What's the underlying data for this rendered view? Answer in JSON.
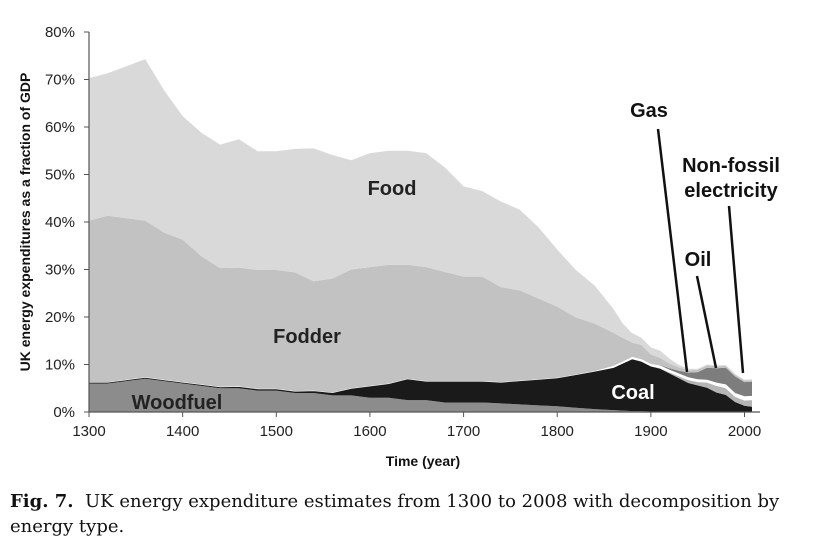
{
  "chart_data": {
    "type": "area",
    "stacked": true,
    "title": "",
    "xlabel": "Time (year)",
    "ylabel": "UK energy expenditures as a fraction of GDP",
    "xlim": [
      1300,
      2008
    ],
    "ylim": [
      0,
      80
    ],
    "xticks": [
      "1300",
      "1400",
      "1500",
      "1600",
      "1700",
      "1800",
      "1900",
      "2000"
    ],
    "yticks": [
      "0%",
      "10%",
      "20%",
      "30%",
      "40%",
      "50%",
      "60%",
      "70%",
      "80%"
    ],
    "x": [
      1300,
      1320,
      1340,
      1360,
      1380,
      1400,
      1420,
      1440,
      1460,
      1480,
      1500,
      1520,
      1540,
      1560,
      1580,
      1600,
      1620,
      1640,
      1660,
      1680,
      1700,
      1720,
      1740,
      1760,
      1780,
      1800,
      1820,
      1840,
      1860,
      1870,
      1880,
      1890,
      1900,
      1910,
      1920,
      1930,
      1940,
      1950,
      1960,
      1970,
      1980,
      1990,
      2000,
      2008
    ],
    "series": [
      {
        "name": "Woodfuel",
        "color": "#8c8c8c",
        "values": [
          6,
          6,
          6.5,
          7,
          6.5,
          6,
          5.5,
          5,
          5,
          4.5,
          4.5,
          4,
          4,
          3.5,
          3.5,
          3,
          3,
          2.5,
          2.5,
          2,
          2,
          2,
          1.8,
          1.6,
          1.4,
          1.2,
          0.9,
          0.6,
          0.4,
          0.3,
          0.2,
          0.2,
          0.1,
          0.1,
          0.1,
          0.1,
          0.1,
          0.1,
          0.1,
          0.1,
          0.1,
          0.1,
          0.1,
          0.1
        ]
      },
      {
        "name": "Coal",
        "color": "#1a1a1a",
        "values": [
          0.3,
          0.3,
          0.3,
          0.3,
          0.3,
          0.3,
          0.3,
          0.3,
          0.4,
          0.4,
          0.4,
          0.4,
          0.5,
          0.6,
          1.5,
          2.5,
          3,
          4.5,
          4,
          4.5,
          4.5,
          4.5,
          4.5,
          5,
          5.5,
          6,
          7,
          8,
          9,
          10,
          11,
          10.5,
          9.5,
          9,
          8,
          7,
          6,
          5.5,
          5,
          4,
          3.5,
          2,
          1.2,
          1
        ]
      },
      {
        "name": "Oil",
        "color": "#b5b5b5",
        "values": [
          0,
          0,
          0,
          0,
          0,
          0,
          0,
          0,
          0,
          0,
          0,
          0,
          0,
          0,
          0,
          0,
          0,
          0,
          0,
          0,
          0,
          0,
          0,
          0,
          0,
          0,
          0,
          0,
          0,
          0,
          0,
          0,
          0.1,
          0.2,
          0.3,
          0.5,
          0.7,
          0.8,
          1.2,
          1.5,
          1.5,
          1.2,
          1.2,
          1.5
        ]
      },
      {
        "name": "Gas",
        "color": "#ffffff",
        "values": [
          0,
          0,
          0,
          0,
          0,
          0,
          0,
          0,
          0,
          0,
          0,
          0,
          0,
          0,
          0,
          0,
          0,
          0,
          0,
          0,
          0,
          0,
          0,
          0,
          0,
          0,
          0,
          0,
          0.3,
          0.3,
          0.4,
          0.4,
          0.4,
          0.5,
          0.5,
          0.5,
          0.5,
          0.5,
          0.5,
          0.6,
          0.7,
          0.7,
          0.8,
          0.8
        ]
      },
      {
        "name": "Non-fossil electricity",
        "color": "#7d7d7d",
        "values": [
          0,
          0,
          0,
          0,
          0,
          0,
          0,
          0,
          0,
          0,
          0,
          0,
          0,
          0,
          0,
          0,
          0,
          0,
          0,
          0,
          0,
          0,
          0,
          0,
          0,
          0,
          0,
          0,
          0,
          0,
          0,
          0,
          0,
          0.1,
          0.3,
          0.6,
          1,
          1.5,
          2.5,
          3,
          3.5,
          3.5,
          3,
          3
        ]
      },
      {
        "name": "Fodder",
        "color": "#c2c2c2",
        "values": [
          34,
          35,
          34,
          33,
          31,
          30,
          27,
          25,
          25,
          25,
          25,
          25,
          23,
          24,
          25,
          25,
          25,
          24,
          24,
          23,
          22,
          22,
          20,
          19,
          17,
          15,
          12,
          10,
          7,
          5,
          3,
          3,
          2,
          1.5,
          1,
          0.7,
          0.5,
          0.5,
          0.5,
          0.4,
          0.4,
          0.3,
          0.3,
          0.3
        ]
      },
      {
        "name": "Food",
        "color": "#d9d9d9",
        "values": [
          30,
          30,
          32,
          34,
          30,
          26,
          26,
          26,
          27,
          25,
          25,
          26,
          28,
          26,
          23,
          24,
          24,
          24,
          24,
          22,
          19,
          18,
          18,
          17,
          15,
          12,
          10,
          8,
          5,
          3,
          2,
          1.5,
          1.5,
          1.5,
          1,
          0.5,
          0.3,
          0.2,
          0.2,
          0.2,
          0.2,
          0.2,
          0.2,
          0.2
        ]
      }
    ],
    "annotations": [
      {
        "text": "Food",
        "color": "#222222"
      },
      {
        "text": "Fodder",
        "color": "#222222"
      },
      {
        "text": "Woodfuel",
        "color": "#222222"
      },
      {
        "text": "Coal",
        "color": "#ffffff"
      },
      {
        "text": "Gas",
        "color": "#111111"
      },
      {
        "text": "Oil",
        "color": "#111111"
      },
      {
        "text": "Non-fossil",
        "color": "#111111"
      },
      {
        "text": "electricity",
        "color": "#111111"
      }
    ],
    "grid": false,
    "legend": "none (inline labels)"
  },
  "caption": {
    "label": "Fig. 7.",
    "text": "UK energy expenditure estimates from 1300 to 2008 with decomposition by energy type."
  }
}
